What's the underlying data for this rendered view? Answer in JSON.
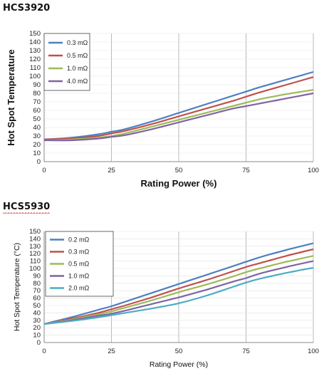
{
  "charts": [
    {
      "heading": "HCS3920",
      "chart_data": {
        "type": "line",
        "title": "",
        "xlabel": "Rating Power (%)",
        "ylabel": "Hot Spot Temperature",
        "xlim": [
          0,
          100
        ],
        "ylim": [
          0,
          150
        ],
        "xticks": [
          0,
          25,
          50,
          75,
          100
        ],
        "yticks": [
          0,
          10,
          20,
          30,
          40,
          50,
          60,
          70,
          80,
          90,
          100,
          110,
          120,
          130,
          140,
          150
        ],
        "grid": "vertical-x",
        "legend": "top-left",
        "series": [
          {
            "name": "0.3 mΩ",
            "color": "#4f7fc0",
            "x": [
              0,
              10,
              20,
              25,
              30,
              40,
              50,
              60,
              70,
              75,
              80,
              90,
              100
            ],
            "values": [
              26,
              28,
              32,
              35,
              38,
              47,
              57,
              67,
              77,
              82,
              87,
              96,
              105
            ]
          },
          {
            "name": "0.5 mΩ",
            "color": "#c0504d",
            "x": [
              0,
              10,
              20,
              25,
              30,
              40,
              50,
              60,
              70,
              75,
              80,
              90,
              100
            ],
            "values": [
              26,
              27,
              30,
              33,
              36,
              44,
              53,
              62,
              71,
              76,
              81,
              90,
              99
            ]
          },
          {
            "name": "1.0 mΩ",
            "color": "#9bbb59",
            "x": [
              0,
              10,
              20,
              25,
              30,
              40,
              50,
              60,
              70,
              75,
              80,
              90,
              100
            ],
            "values": [
              25,
              26,
              28,
              30,
              33,
              41,
              49,
              57,
              65,
              69,
              73,
              79,
              84
            ]
          },
          {
            "name": "4.0 mΩ",
            "color": "#8064a2",
            "x": [
              0,
              10,
              20,
              25,
              30,
              40,
              50,
              60,
              70,
              75,
              80,
              90,
              100
            ],
            "values": [
              25,
              25,
              27,
              29,
              31,
              38,
              46,
              54,
              62,
              65,
              68,
              74,
              80
            ]
          }
        ]
      }
    },
    {
      "heading": "HCS5930",
      "chart_data": {
        "type": "line",
        "title": "",
        "xlabel": "Rating Power (%)",
        "ylabel": "Hot Spot Temperature (°C)",
        "xlim": [
          0,
          100
        ],
        "ylim": [
          0,
          150
        ],
        "xticks": [
          0,
          25,
          50,
          75,
          100
        ],
        "yticks": [
          0,
          10,
          20,
          30,
          40,
          50,
          60,
          70,
          80,
          90,
          100,
          110,
          120,
          130,
          140,
          150
        ],
        "grid": "vertical-x",
        "legend": "top-left",
        "series": [
          {
            "name": "0.2 mΩ",
            "color": "#4f7fc0",
            "x": [
              0,
              10,
              20,
              25,
              30,
              40,
              50,
              60,
              70,
              75,
              80,
              90,
              100
            ],
            "values": [
              25,
              34,
              44,
              49,
              55,
              67,
              79,
              91,
              103,
              109,
              115,
              125,
              134
            ]
          },
          {
            "name": "0.3 mΩ",
            "color": "#c0504d",
            "x": [
              0,
              10,
              20,
              25,
              30,
              40,
              50,
              60,
              70,
              75,
              80,
              90,
              100
            ],
            "values": [
              25,
              32,
              40,
              45,
              50,
              61,
              73,
              84,
              96,
              102,
              107,
              117,
              126
            ]
          },
          {
            "name": "0.5 mΩ",
            "color": "#9bbb59",
            "x": [
              0,
              10,
              20,
              25,
              30,
              40,
              50,
              60,
              70,
              75,
              80,
              90,
              100
            ],
            "values": [
              25,
              31,
              38,
              42,
              47,
              57,
              68,
              78,
              89,
              95,
              100,
              109,
              117
            ]
          },
          {
            "name": "1.0 mΩ",
            "color": "#8064a2",
            "x": [
              0,
              10,
              20,
              25,
              30,
              40,
              50,
              60,
              70,
              75,
              80,
              90,
              100
            ],
            "values": [
              25,
              30,
              36,
              39,
              43,
              52,
              61,
              71,
              82,
              87,
              93,
              102,
              110
            ]
          },
          {
            "name": "2.0 mΩ",
            "color": "#4bacc6",
            "x": [
              0,
              10,
              20,
              25,
              30,
              40,
              50,
              60,
              70,
              75,
              80,
              90,
              100
            ],
            "values": [
              25,
              29,
              34,
              37,
              40,
              46,
              53,
              63,
              75,
              81,
              86,
              94,
              101
            ]
          }
        ]
      }
    }
  ]
}
